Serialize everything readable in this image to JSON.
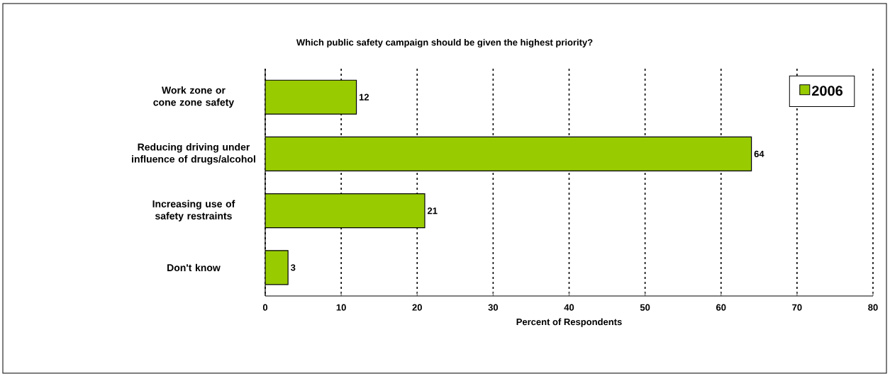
{
  "chart_data": {
    "type": "bar",
    "orientation": "horizontal",
    "title": "Which public safety campaign should be given the highest priority?",
    "xlabel": "Percent of Respondents",
    "categories": [
      "Work zone or cone zone safety",
      "Reducing driving under influence of drugs/alcohol",
      "Increasing use of safety restraints",
      "Don't know"
    ],
    "series": [
      {
        "name": "2006",
        "color": "#99cc00",
        "values": [
          12,
          64,
          21,
          3
        ]
      }
    ],
    "xlim": [
      0,
      80
    ],
    "xticks": [
      0,
      10,
      20,
      30,
      40,
      50,
      60,
      70,
      80
    ],
    "grid": "x",
    "legend": "top right",
    "data_labels": true
  }
}
